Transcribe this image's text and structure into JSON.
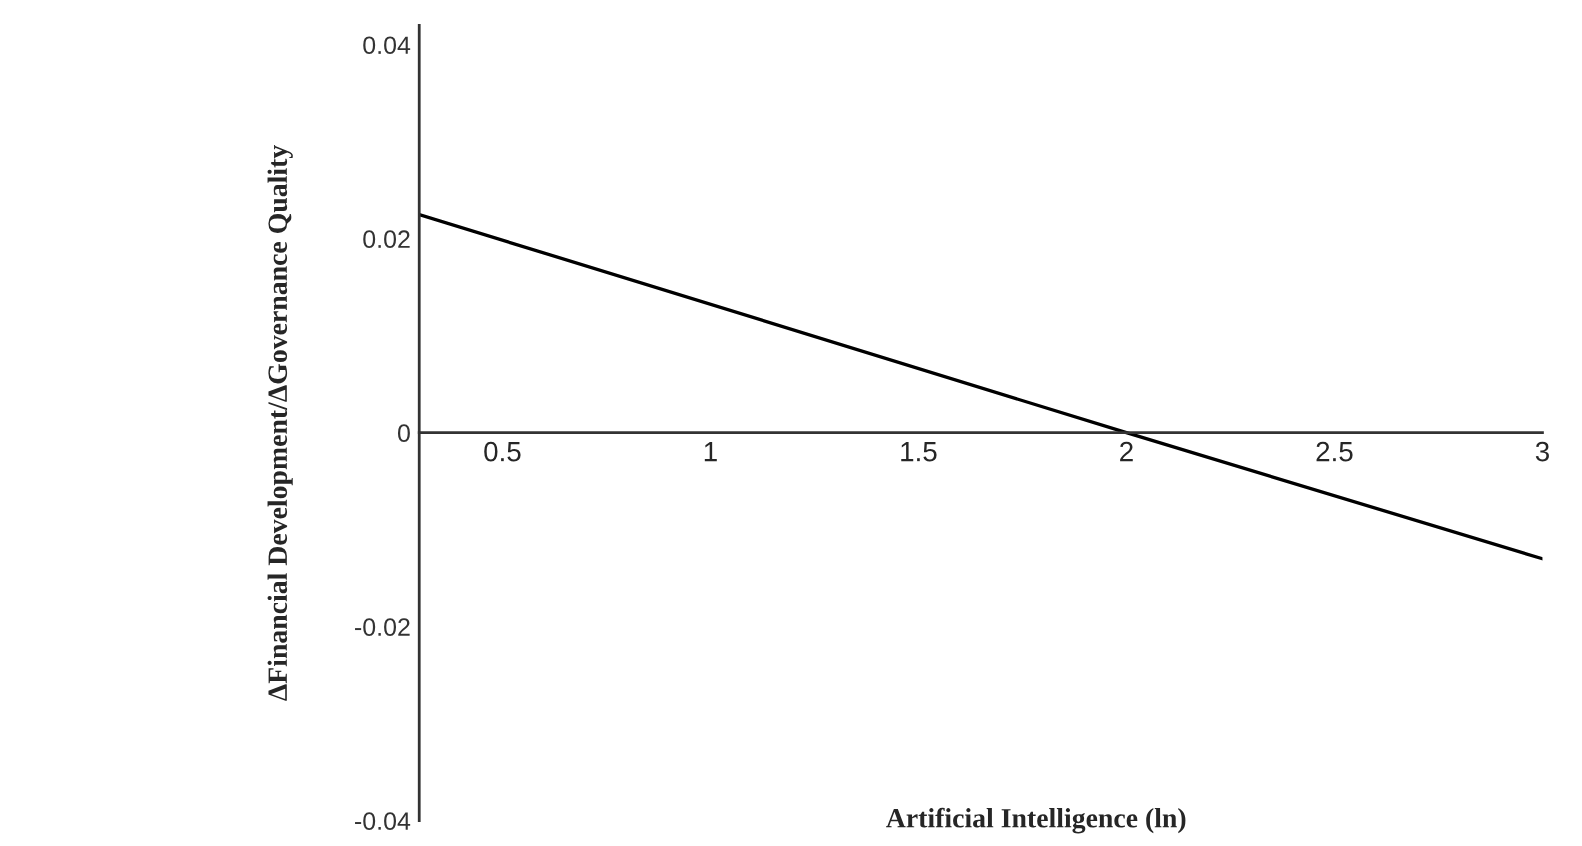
{
  "chart_data": {
    "type": "line",
    "xlabel": "Artificial Intelligence (ln)",
    "ylabel": "ΔFinancial Development/ΔGovernance Quality",
    "x": [
      0.3,
      2.0,
      3.0
    ],
    "series": [
      {
        "color": "#000000",
        "values": [
          0.0225,
          0,
          -0.013
        ]
      }
    ],
    "xlim": [
      0.3,
      3.0
    ],
    "xticks": [
      0.5,
      1,
      1.5,
      2,
      2.5,
      3
    ],
    "ylim": [
      -0.04,
      0.042
    ],
    "yticks": [
      -0.04,
      -0.02,
      0,
      0.02,
      0.04
    ],
    "grid": false,
    "marker": "none",
    "line_style": "solid"
  }
}
